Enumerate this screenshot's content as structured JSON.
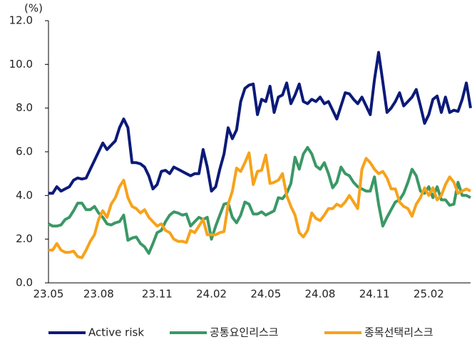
{
  "chart_data": {
    "type": "line",
    "y_unit": "(%)",
    "categories": [
      "23.05",
      null,
      null,
      null,
      null,
      null,
      null,
      null,
      null,
      null,
      null,
      null,
      "23.08",
      null,
      null,
      null,
      null,
      null,
      null,
      null,
      null,
      null,
      null,
      null,
      null,
      null,
      "23.11",
      null,
      null,
      null,
      null,
      null,
      null,
      null,
      null,
      null,
      null,
      null,
      null,
      "24.02",
      null,
      null,
      null,
      null,
      null,
      null,
      null,
      null,
      null,
      null,
      null,
      null,
      "24.05",
      null,
      null,
      null,
      null,
      null,
      null,
      null,
      null,
      null,
      null,
      null,
      null,
      "24.08",
      null,
      null,
      null,
      null,
      null,
      null,
      null,
      null,
      null,
      null,
      null,
      null,
      "24.11",
      null,
      null,
      null,
      null,
      null,
      null,
      null,
      null,
      null,
      null,
      null,
      null,
      "25.02",
      null,
      null,
      null,
      null,
      null,
      null,
      null,
      null,
      null,
      null
    ],
    "series": [
      {
        "name": "Active risk",
        "color": "#0b1a78",
        "values": [
          4.1,
          4.1,
          4.4,
          4.2,
          4.3,
          4.4,
          4.7,
          4.8,
          4.75,
          4.8,
          5.2,
          5.6,
          6.0,
          6.4,
          6.1,
          6.3,
          6.5,
          7.1,
          7.5,
          7.1,
          5.5,
          5.5,
          5.45,
          5.3,
          4.9,
          4.3,
          4.5,
          5.1,
          5.15,
          5.0,
          5.3,
          5.2,
          5.1,
          5.0,
          4.9,
          5.0,
          5.0,
          6.1,
          5.3,
          4.2,
          4.4,
          5.2,
          5.9,
          7.1,
          6.6,
          7.0,
          8.3,
          8.9,
          9.05,
          9.1,
          7.7,
          8.4,
          8.3,
          9.0,
          7.8,
          8.5,
          8.6,
          9.15,
          8.2,
          8.6,
          9.1,
          8.3,
          8.2,
          8.4,
          8.3,
          8.5,
          8.2,
          8.3,
          7.9,
          7.5,
          8.1,
          8.7,
          8.65,
          8.4,
          8.2,
          8.5,
          8.1,
          7.7,
          9.3,
          10.55,
          9.2,
          7.8,
          8.0,
          8.3,
          8.7,
          8.1,
          8.3,
          8.5,
          8.85,
          8.1,
          7.3,
          7.7,
          8.4,
          8.55,
          7.8,
          8.5,
          7.8,
          7.9,
          7.85,
          8.4,
          9.15,
          8.0
        ]
      },
      {
        "name": "공통요인리스크",
        "color": "#3a9866",
        "values": [
          2.7,
          2.6,
          2.6,
          2.65,
          2.9,
          3.0,
          3.3,
          3.65,
          3.65,
          3.35,
          3.35,
          3.5,
          3.2,
          3.0,
          2.7,
          2.65,
          2.75,
          2.8,
          3.1,
          1.95,
          2.05,
          2.1,
          1.8,
          1.65,
          1.35,
          1.8,
          2.3,
          2.4,
          2.8,
          3.1,
          3.25,
          3.2,
          3.1,
          3.15,
          2.6,
          2.8,
          3.0,
          2.9,
          3.0,
          2.0,
          2.6,
          3.1,
          3.6,
          3.65,
          3.0,
          2.75,
          3.1,
          3.7,
          3.6,
          3.15,
          3.15,
          3.25,
          3.1,
          3.2,
          3.3,
          3.9,
          3.85,
          4.1,
          4.55,
          5.75,
          5.2,
          5.9,
          6.2,
          5.9,
          5.35,
          5.2,
          5.5,
          5.0,
          4.35,
          4.6,
          5.3,
          5.0,
          4.9,
          4.6,
          4.4,
          4.3,
          4.2,
          4.2,
          4.85,
          3.6,
          2.6,
          3.0,
          3.35,
          3.7,
          3.8,
          4.1,
          4.6,
          5.2,
          4.9,
          4.2,
          4.1,
          4.4,
          3.9,
          4.4,
          3.8,
          3.8,
          3.55,
          3.6,
          4.6,
          4.0,
          4.0,
          3.9
        ]
      },
      {
        "name": "종목선택리스크",
        "color": "#f7a21b",
        "values": [
          1.5,
          1.5,
          1.8,
          1.5,
          1.4,
          1.4,
          1.45,
          1.2,
          1.15,
          1.5,
          1.9,
          2.2,
          2.9,
          3.3,
          3.0,
          3.6,
          3.9,
          4.4,
          4.7,
          3.9,
          3.5,
          3.4,
          3.2,
          3.35,
          3.0,
          2.8,
          2.6,
          2.7,
          2.4,
          2.3,
          2.0,
          1.9,
          1.9,
          1.85,
          2.4,
          2.3,
          2.6,
          2.9,
          2.2,
          2.2,
          2.2,
          2.3,
          2.35,
          3.6,
          4.2,
          5.25,
          5.1,
          5.5,
          5.95,
          4.5,
          5.1,
          5.15,
          5.85,
          4.55,
          4.6,
          4.7,
          5.0,
          4.0,
          3.5,
          3.1,
          2.3,
          2.1,
          2.4,
          3.2,
          2.95,
          2.85,
          3.1,
          3.4,
          3.4,
          3.6,
          3.5,
          3.7,
          4.0,
          3.7,
          3.4,
          5.2,
          5.7,
          5.5,
          5.2,
          5.0,
          5.1,
          4.8,
          4.3,
          4.3,
          3.7,
          3.5,
          3.4,
          3.05,
          3.6,
          3.9,
          4.35,
          4.0,
          4.35,
          3.8,
          4.0,
          4.5,
          4.85,
          4.6,
          4.1,
          4.2,
          4.3,
          4.2
        ]
      }
    ],
    "ylim": [
      0,
      12
    ],
    "yticks": [
      {
        "value": 0,
        "label": "0.0"
      },
      {
        "value": 2,
        "label": "2.0"
      },
      {
        "value": 4,
        "label": "4.0"
      },
      {
        "value": 6,
        "label": "6.0"
      },
      {
        "value": 8,
        "label": "8.0"
      },
      {
        "value": 10,
        "label": "10.0"
      },
      {
        "value": 12,
        "label": "12.0"
      }
    ],
    "grid": false,
    "legend": "bottom"
  }
}
